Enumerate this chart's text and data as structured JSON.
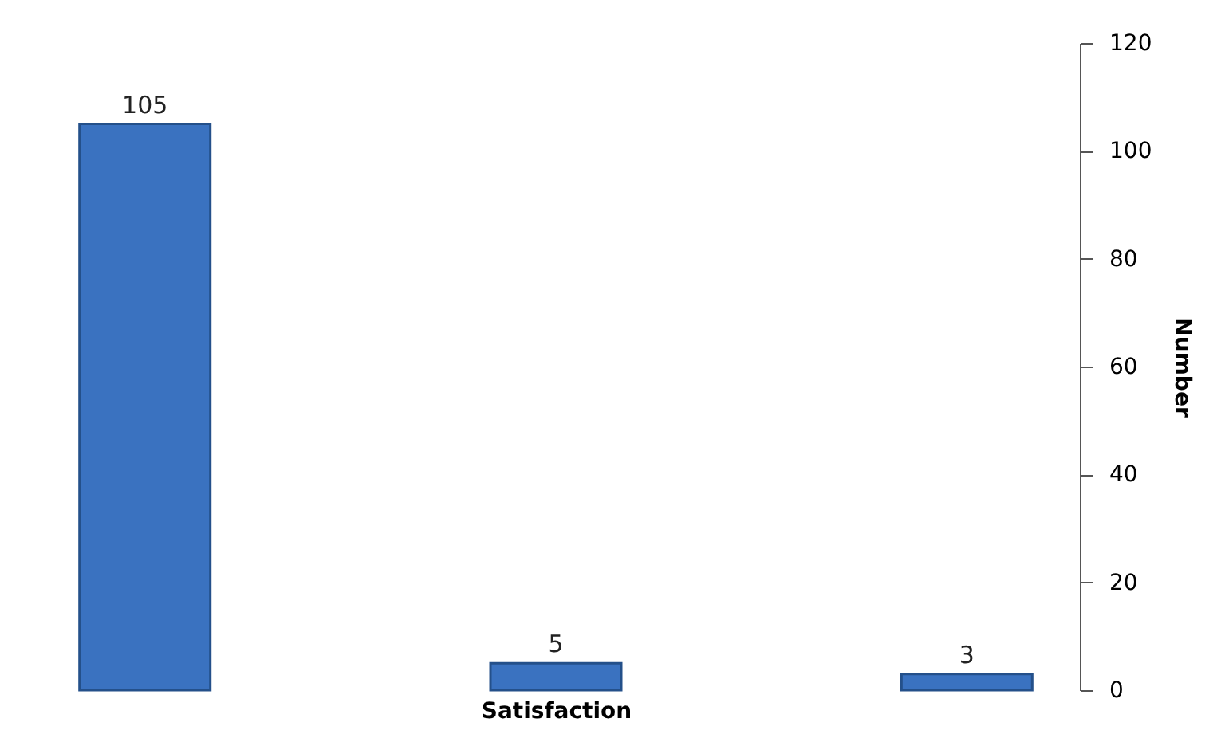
{
  "chart_data": {
    "type": "bar",
    "xlabel": "Satisfaction",
    "ylabel": "Number",
    "categories": [
      null,
      null,
      null
    ],
    "values": [
      105,
      5,
      3
    ],
    "color": "#3a72c0",
    "ylim": [
      0,
      120
    ],
    "yticks": [
      0,
      20,
      40,
      60,
      80,
      100,
      120
    ],
    "grid": false,
    "data_labels": true
  }
}
